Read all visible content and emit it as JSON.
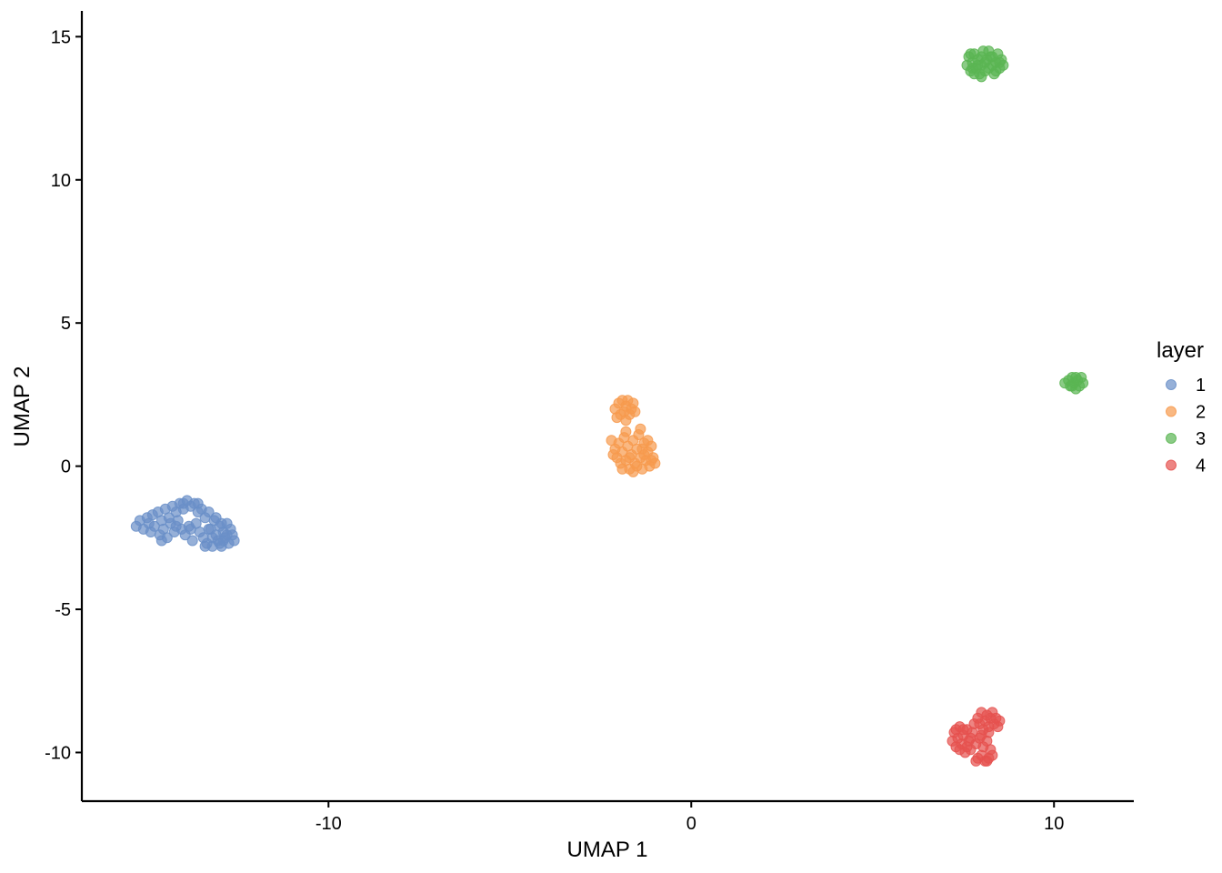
{
  "chart_data": {
    "type": "scatter",
    "title": "",
    "xlabel": "UMAP 1",
    "ylabel": "UMAP 2",
    "xlim": [
      -16.8,
      12.2
    ],
    "ylim": [
      -11.7,
      15.9
    ],
    "x_ticks": [
      -10,
      0,
      10
    ],
    "x_tick_labels": [
      "-10",
      "0",
      "10"
    ],
    "y_ticks": [
      -10,
      -5,
      0,
      5,
      10,
      15
    ],
    "y_tick_labels": [
      "-10",
      "-5",
      "0",
      "5",
      "10",
      "15"
    ],
    "grid": false,
    "legend": {
      "title": "layer",
      "placement": "right"
    },
    "series": [
      {
        "name": "1",
        "color": "#6a8fc8",
        "points": [
          [
            -15.3,
            -2.1
          ],
          [
            -15.2,
            -1.9
          ],
          [
            -15.1,
            -2.2
          ],
          [
            -15.0,
            -1.8
          ],
          [
            -14.95,
            -2.0
          ],
          [
            -14.9,
            -2.3
          ],
          [
            -14.85,
            -1.7
          ],
          [
            -14.8,
            -2.1
          ],
          [
            -14.7,
            -1.6
          ],
          [
            -14.65,
            -2.4
          ],
          [
            -14.6,
            -1.9
          ],
          [
            -14.55,
            -2.2
          ],
          [
            -14.5,
            -1.5
          ],
          [
            -14.45,
            -2.5
          ],
          [
            -14.4,
            -1.8
          ],
          [
            -14.35,
            -2.0
          ],
          [
            -14.3,
            -1.4
          ],
          [
            -14.25,
            -2.3
          ],
          [
            -14.2,
            -1.6
          ],
          [
            -14.15,
            -1.9
          ],
          [
            -14.1,
            -1.3
          ],
          [
            -14.05,
            -2.2
          ],
          [
            -14.0,
            -1.5
          ],
          [
            -13.95,
            -2.4
          ],
          [
            -13.9,
            -1.2
          ],
          [
            -13.85,
            -2.1
          ],
          [
            -13.8,
            -1.4
          ],
          [
            -13.75,
            -2.6
          ],
          [
            -13.7,
            -1.3
          ],
          [
            -13.65,
            -2.0
          ],
          [
            -13.6,
            -1.6
          ],
          [
            -13.55,
            -2.3
          ],
          [
            -13.5,
            -1.5
          ],
          [
            -13.45,
            -2.5
          ],
          [
            -13.4,
            -1.8
          ],
          [
            -13.35,
            -2.7
          ],
          [
            -13.3,
            -1.6
          ],
          [
            -13.25,
            -2.2
          ],
          [
            -13.2,
            -2.8
          ],
          [
            -13.15,
            -1.9
          ],
          [
            -13.1,
            -2.4
          ],
          [
            -13.05,
            -2.6
          ],
          [
            -13.0,
            -2.1
          ],
          [
            -12.95,
            -2.8
          ],
          [
            -12.9,
            -2.3
          ],
          [
            -12.85,
            -2.5
          ],
          [
            -12.8,
            -2.0
          ],
          [
            -12.75,
            -2.7
          ],
          [
            -12.7,
            -2.2
          ],
          [
            -12.65,
            -2.4
          ],
          [
            -12.6,
            -2.6
          ],
          [
            -13.4,
            -2.8
          ],
          [
            -13.2,
            -2.5
          ],
          [
            -13.0,
            -2.7
          ],
          [
            -12.9,
            -2.6
          ],
          [
            -12.8,
            -2.4
          ],
          [
            -13.1,
            -1.8
          ],
          [
            -12.95,
            -2.0
          ],
          [
            -13.3,
            -2.2
          ],
          [
            -14.2,
            -2.1
          ],
          [
            -14.6,
            -2.6
          ],
          [
            -13.8,
            -2.2
          ],
          [
            -14.0,
            -1.3
          ],
          [
            -13.6,
            -1.3
          ]
        ]
      },
      {
        "name": "2",
        "color": "#f79a4d",
        "points": [
          [
            -2.1,
            2.0
          ],
          [
            -2.0,
            2.2
          ],
          [
            -1.95,
            1.8
          ],
          [
            -1.9,
            2.3
          ],
          [
            -1.85,
            1.9
          ],
          [
            -1.8,
            2.1
          ],
          [
            -1.75,
            2.3
          ],
          [
            -1.7,
            1.8
          ],
          [
            -1.65,
            2.0
          ],
          [
            -1.6,
            2.2
          ],
          [
            -1.55,
            1.9
          ],
          [
            -2.05,
            1.7
          ],
          [
            -1.8,
            1.6
          ],
          [
            -2.1,
            0.6
          ],
          [
            -2.05,
            0.3
          ],
          [
            -2.0,
            0.8
          ],
          [
            -1.95,
            0.1
          ],
          [
            -1.9,
            0.5
          ],
          [
            -1.85,
            1.0
          ],
          [
            -1.8,
            0.2
          ],
          [
            -1.75,
            0.7
          ],
          [
            -1.7,
            -0.1
          ],
          [
            -1.65,
            0.4
          ],
          [
            -1.6,
            0.9
          ],
          [
            -1.55,
            0.1
          ],
          [
            -1.5,
            0.6
          ],
          [
            -1.45,
            1.1
          ],
          [
            -1.4,
            0.3
          ],
          [
            -1.35,
            -0.1
          ],
          [
            -1.3,
            0.8
          ],
          [
            -1.25,
            0.2
          ],
          [
            -1.2,
            0.5
          ],
          [
            -1.15,
            0.0
          ],
          [
            -1.1,
            0.7
          ],
          [
            -1.05,
            0.3
          ],
          [
            -1.0,
            0.1
          ],
          [
            -1.5,
            0.0
          ],
          [
            -1.7,
            0.3
          ],
          [
            -1.3,
            0.4
          ],
          [
            -1.9,
            -0.1
          ],
          [
            -1.6,
            -0.2
          ],
          [
            -2.2,
            0.9
          ],
          [
            -1.4,
            1.3
          ],
          [
            -1.8,
            1.2
          ],
          [
            -2.15,
            0.4
          ],
          [
            -1.2,
            0.9
          ],
          [
            -1.1,
            0.2
          ],
          [
            -1.35,
            0.6
          ]
        ]
      },
      {
        "name": "3",
        "color": "#5ab552",
        "points": [
          [
            7.6,
            14.0
          ],
          [
            7.65,
            14.3
          ],
          [
            7.7,
            13.8
          ],
          [
            7.75,
            14.1
          ],
          [
            7.8,
            14.4
          ],
          [
            7.85,
            13.9
          ],
          [
            7.9,
            14.2
          ],
          [
            7.95,
            13.7
          ],
          [
            8.0,
            14.0
          ],
          [
            8.05,
            14.5
          ],
          [
            8.1,
            13.8
          ],
          [
            8.15,
            14.2
          ],
          [
            8.2,
            13.9
          ],
          [
            8.25,
            14.3
          ],
          [
            8.3,
            14.0
          ],
          [
            8.35,
            13.7
          ],
          [
            8.4,
            14.1
          ],
          [
            8.45,
            14.4
          ],
          [
            8.5,
            13.9
          ],
          [
            8.55,
            14.2
          ],
          [
            8.6,
            14.0
          ],
          [
            7.7,
            14.4
          ],
          [
            7.8,
            13.7
          ],
          [
            8.0,
            14.3
          ],
          [
            8.2,
            14.5
          ],
          [
            8.4,
            13.8
          ],
          [
            7.9,
            14.0
          ],
          [
            8.1,
            14.1
          ],
          [
            8.3,
            14.3
          ],
          [
            7.75,
            13.9
          ],
          [
            8.5,
            14.1
          ],
          [
            8.0,
            13.6
          ],
          [
            10.3,
            2.9
          ],
          [
            10.4,
            3.0
          ],
          [
            10.45,
            2.8
          ],
          [
            10.5,
            3.1
          ],
          [
            10.55,
            2.9
          ],
          [
            10.6,
            2.7
          ],
          [
            10.65,
            3.0
          ],
          [
            10.7,
            2.8
          ],
          [
            10.75,
            3.1
          ],
          [
            10.8,
            2.9
          ],
          [
            10.5,
            2.8
          ],
          [
            10.6,
            3.1
          ]
        ]
      },
      {
        "name": "4",
        "color": "#e5514f",
        "points": [
          [
            7.2,
            -9.6
          ],
          [
            7.25,
            -9.3
          ],
          [
            7.3,
            -9.8
          ],
          [
            7.35,
            -9.5
          ],
          [
            7.4,
            -9.1
          ],
          [
            7.45,
            -9.7
          ],
          [
            7.5,
            -9.4
          ],
          [
            7.55,
            -10.0
          ],
          [
            7.6,
            -9.2
          ],
          [
            7.65,
            -9.6
          ],
          [
            7.7,
            -9.9
          ],
          [
            7.75,
            -9.3
          ],
          [
            7.8,
            -9.0
          ],
          [
            7.85,
            -9.7
          ],
          [
            7.9,
            -10.2
          ],
          [
            7.95,
            -9.5
          ],
          [
            8.0,
            -10.1
          ],
          [
            8.05,
            -9.8
          ],
          [
            8.1,
            -10.3
          ],
          [
            8.15,
            -9.6
          ],
          [
            8.2,
            -10.2
          ],
          [
            8.25,
            -9.9
          ],
          [
            8.3,
            -10.1
          ],
          [
            7.9,
            -8.8
          ],
          [
            8.0,
            -8.6
          ],
          [
            8.05,
            -9.2
          ],
          [
            8.1,
            -8.9
          ],
          [
            8.15,
            -8.7
          ],
          [
            8.2,
            -9.1
          ],
          [
            8.25,
            -8.8
          ],
          [
            8.3,
            -8.6
          ],
          [
            8.35,
            -9.0
          ],
          [
            8.4,
            -8.8
          ],
          [
            8.45,
            -9.1
          ],
          [
            8.5,
            -8.9
          ],
          [
            7.5,
            -9.2
          ],
          [
            7.7,
            -9.5
          ],
          [
            7.4,
            -9.9
          ],
          [
            8.0,
            -9.4
          ],
          [
            7.85,
            -10.3
          ],
          [
            8.15,
            -10.3
          ],
          [
            7.6,
            -9.8
          ],
          [
            7.3,
            -9.2
          ],
          [
            8.2,
            -9.3
          ],
          [
            7.95,
            -9.0
          ]
        ]
      }
    ]
  }
}
